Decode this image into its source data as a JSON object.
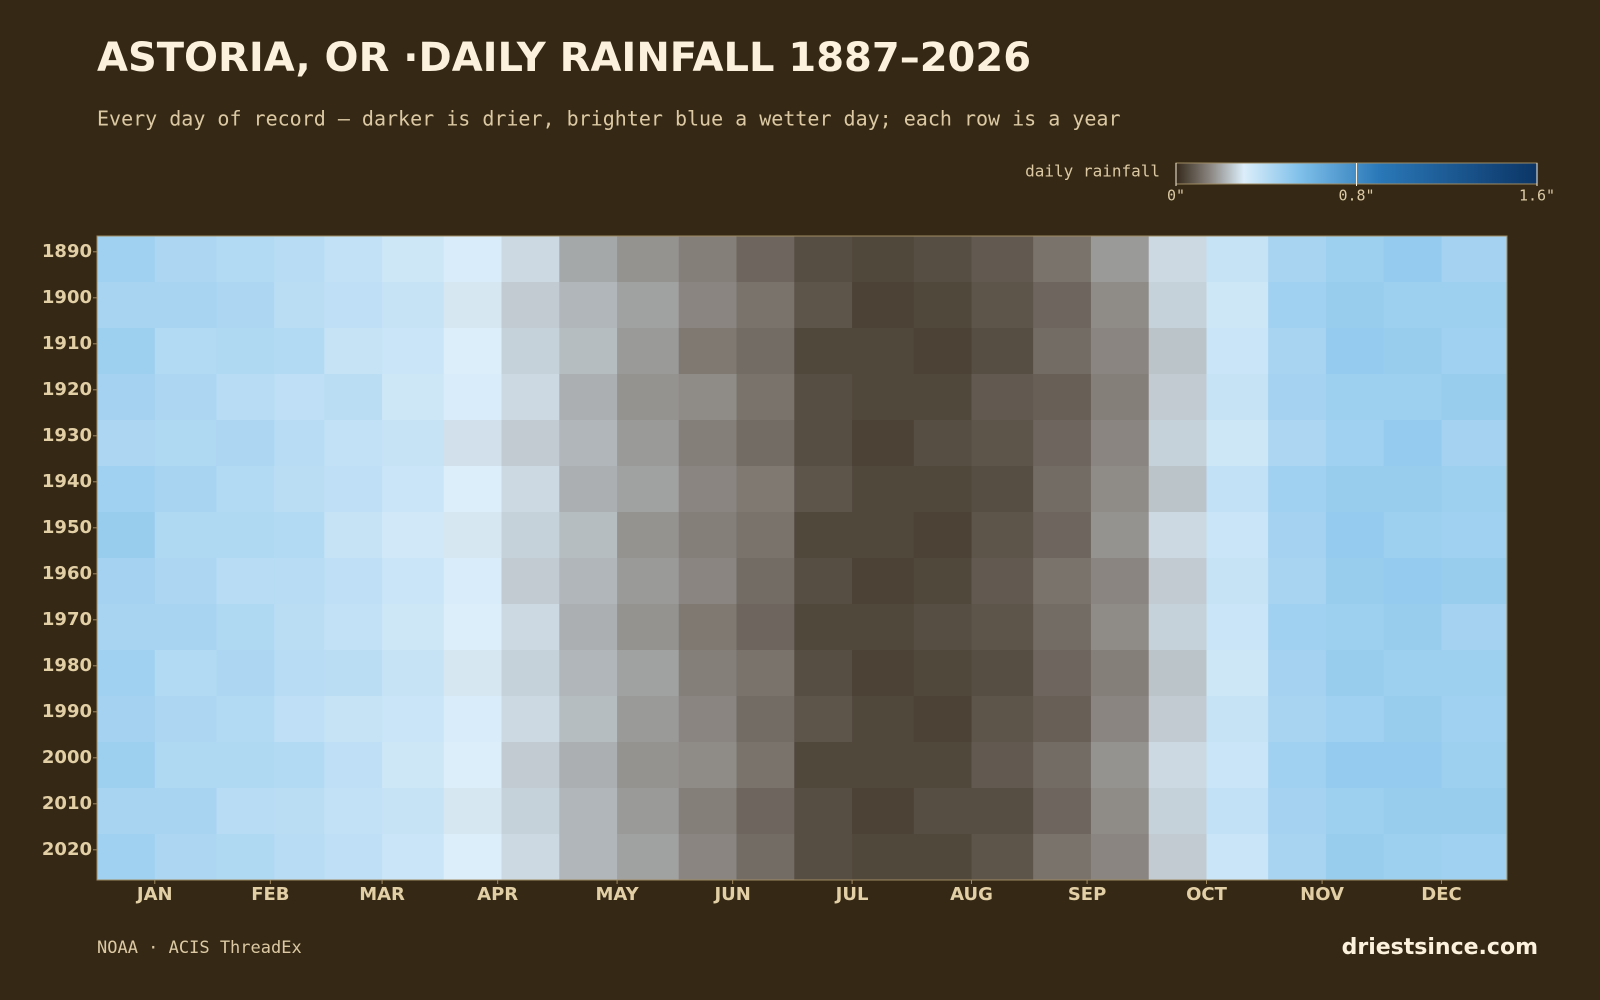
{
  "chart_data": {
    "type": "heatmap",
    "title": "ASTORIA, OR ·DAILY RAINFALL 1887–2026",
    "subtitle": "Every day of record — darker is drier, brighter blue a wetter day; each row is a year",
    "source": "NOAA · ACIS ThreadEx",
    "brand": "driestsince.com",
    "x": [
      1,
      16,
      32,
      47,
      60,
      75,
      91,
      106,
      121,
      136,
      152,
      167,
      182,
      197,
      213,
      228,
      244,
      259,
      274,
      289,
      305,
      320,
      335,
      350
    ],
    "xlim": [
      1,
      367
    ],
    "xticks": [
      {
        "value": 16,
        "label": "JAN"
      },
      {
        "value": 46,
        "label": "FEB"
      },
      {
        "value": 75,
        "label": "MAR"
      },
      {
        "value": 105,
        "label": "APR"
      },
      {
        "value": 136,
        "label": "MAY"
      },
      {
        "value": 166,
        "label": "JUN"
      },
      {
        "value": 197,
        "label": "JUL"
      },
      {
        "value": 228,
        "label": "AUG"
      },
      {
        "value": 258,
        "label": "SEP"
      },
      {
        "value": 289,
        "label": "OCT"
      },
      {
        "value": 319,
        "label": "NOV"
      },
      {
        "value": 350,
        "label": "DEC"
      }
    ],
    "y": [
      1887,
      1897,
      1907,
      1917,
      1927,
      1937,
      1947,
      1957,
      1967,
      1977,
      1987,
      1997,
      2007,
      2017
    ],
    "ylim": [
      1887,
      2027
    ],
    "yticks": [
      1890,
      1900,
      1910,
      1920,
      1930,
      1940,
      1950,
      1960,
      1970,
      1980,
      1990,
      2000,
      2010,
      2020
    ],
    "values": [
      [
        0.46,
        0.43,
        0.41,
        0.4,
        0.37,
        0.34,
        0.31,
        0.27,
        0.2,
        0.17,
        0.14,
        0.1,
        0.06,
        0.05,
        0.06,
        0.08,
        0.12,
        0.18,
        0.27,
        0.36,
        0.44,
        0.47,
        0.49,
        0.45
      ],
      [
        0.44,
        0.44,
        0.43,
        0.39,
        0.38,
        0.36,
        0.29,
        0.25,
        0.22,
        0.19,
        0.15,
        0.12,
        0.07,
        0.04,
        0.05,
        0.07,
        0.1,
        0.16,
        0.26,
        0.34,
        0.46,
        0.48,
        0.47,
        0.47
      ],
      [
        0.47,
        0.41,
        0.42,
        0.41,
        0.36,
        0.35,
        0.3,
        0.26,
        0.23,
        0.18,
        0.13,
        0.11,
        0.05,
        0.05,
        0.04,
        0.06,
        0.11,
        0.15,
        0.24,
        0.35,
        0.44,
        0.49,
        0.48,
        0.46
      ],
      [
        0.45,
        0.43,
        0.4,
        0.38,
        0.39,
        0.34,
        0.31,
        0.27,
        0.21,
        0.17,
        0.16,
        0.12,
        0.06,
        0.05,
        0.05,
        0.08,
        0.09,
        0.14,
        0.25,
        0.36,
        0.45,
        0.47,
        0.47,
        0.48
      ],
      [
        0.43,
        0.42,
        0.43,
        0.4,
        0.37,
        0.36,
        0.28,
        0.25,
        0.22,
        0.18,
        0.14,
        0.11,
        0.06,
        0.04,
        0.06,
        0.07,
        0.1,
        0.15,
        0.26,
        0.34,
        0.43,
        0.46,
        0.49,
        0.45
      ],
      [
        0.46,
        0.44,
        0.41,
        0.39,
        0.38,
        0.35,
        0.3,
        0.27,
        0.21,
        0.19,
        0.15,
        0.13,
        0.07,
        0.05,
        0.05,
        0.06,
        0.11,
        0.16,
        0.24,
        0.37,
        0.46,
        0.48,
        0.48,
        0.47
      ],
      [
        0.48,
        0.42,
        0.42,
        0.41,
        0.36,
        0.33,
        0.29,
        0.26,
        0.23,
        0.17,
        0.14,
        0.12,
        0.05,
        0.05,
        0.04,
        0.07,
        0.1,
        0.17,
        0.27,
        0.35,
        0.45,
        0.49,
        0.47,
        0.46
      ],
      [
        0.45,
        0.43,
        0.4,
        0.4,
        0.38,
        0.35,
        0.31,
        0.25,
        0.22,
        0.18,
        0.15,
        0.11,
        0.06,
        0.04,
        0.05,
        0.08,
        0.12,
        0.15,
        0.25,
        0.36,
        0.44,
        0.48,
        0.49,
        0.48
      ],
      [
        0.44,
        0.44,
        0.42,
        0.39,
        0.37,
        0.34,
        0.3,
        0.27,
        0.21,
        0.17,
        0.13,
        0.1,
        0.05,
        0.05,
        0.06,
        0.07,
        0.11,
        0.16,
        0.26,
        0.35,
        0.46,
        0.47,
        0.48,
        0.45
      ],
      [
        0.46,
        0.41,
        0.43,
        0.4,
        0.39,
        0.36,
        0.29,
        0.26,
        0.22,
        0.19,
        0.14,
        0.12,
        0.06,
        0.04,
        0.05,
        0.06,
        0.1,
        0.14,
        0.24,
        0.34,
        0.45,
        0.48,
        0.47,
        0.47
      ],
      [
        0.45,
        0.43,
        0.41,
        0.38,
        0.36,
        0.35,
        0.31,
        0.27,
        0.23,
        0.18,
        0.15,
        0.11,
        0.07,
        0.05,
        0.04,
        0.07,
        0.09,
        0.15,
        0.25,
        0.36,
        0.44,
        0.46,
        0.48,
        0.46
      ],
      [
        0.47,
        0.42,
        0.42,
        0.41,
        0.38,
        0.34,
        0.3,
        0.25,
        0.21,
        0.17,
        0.16,
        0.12,
        0.05,
        0.05,
        0.05,
        0.08,
        0.11,
        0.17,
        0.27,
        0.35,
        0.46,
        0.49,
        0.49,
        0.47
      ],
      [
        0.44,
        0.44,
        0.4,
        0.39,
        0.37,
        0.36,
        0.29,
        0.26,
        0.22,
        0.18,
        0.14,
        0.1,
        0.06,
        0.04,
        0.06,
        0.06,
        0.1,
        0.16,
        0.26,
        0.37,
        0.45,
        0.47,
        0.48,
        0.48
      ],
      [
        0.46,
        0.43,
        0.42,
        0.4,
        0.38,
        0.35,
        0.3,
        0.27,
        0.22,
        0.19,
        0.15,
        0.11,
        0.06,
        0.05,
        0.05,
        0.07,
        0.12,
        0.15,
        0.25,
        0.35,
        0.44,
        0.48,
        0.47,
        0.46
      ]
    ],
    "colorbar": {
      "label": "daily rainfall",
      "lim": [
        0,
        1.6
      ],
      "ticks": [
        {
          "value": 0,
          "label": "0\""
        },
        {
          "value": 0.8,
          "label": "0.8\""
        },
        {
          "value": 1.6,
          "label": "1.6\""
        }
      ]
    },
    "color_stops": [
      [
        0,
        "#35291a"
      ],
      [
        0.15,
        "#8a8580"
      ],
      [
        0.3,
        "#dceefa"
      ],
      [
        0.55,
        "#7fc0ea"
      ],
      [
        0.9,
        "#2a78b8"
      ],
      [
        1.6,
        "#0b3566"
      ]
    ],
    "background": "#352915"
  }
}
